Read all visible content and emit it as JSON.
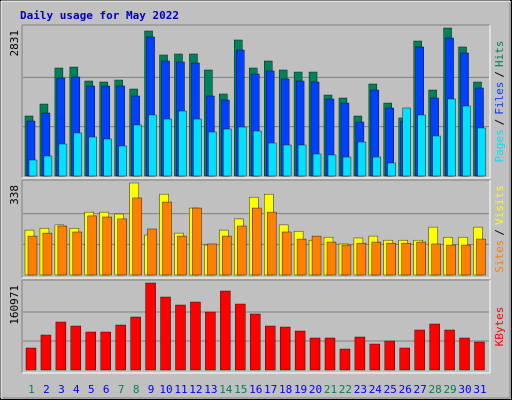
{
  "title": "Daily usage for May 2022",
  "label_separator": "/",
  "days": [
    1,
    2,
    3,
    4,
    5,
    6,
    7,
    8,
    9,
    10,
    11,
    12,
    13,
    14,
    15,
    16,
    17,
    18,
    19,
    20,
    21,
    22,
    23,
    24,
    25,
    26,
    27,
    28,
    29,
    30,
    31
  ],
  "weekend_days": [
    1,
    7,
    8,
    14,
    15,
    21,
    22,
    28,
    29
  ],
  "weekday_color": "#0000ff",
  "weekend_color": "#00805c",
  "chart_data": [
    {
      "type": "bar",
      "ylim": [
        0,
        2831
      ],
      "yticks": [
        2831
      ],
      "series": [
        {
          "name": "Hits",
          "color": "#00805c",
          "values": [
            1148,
            1377,
            2066,
            2085,
            1817,
            1798,
            1836,
            1664,
            2774,
            2315,
            2334,
            2334,
            2028,
            1569,
            2602,
            2066,
            2200,
            2028,
            1989,
            1989,
            1549,
            1492,
            1148,
            1760,
            1396,
            1110,
            2582,
            1645,
            2831,
            2468,
            1798
          ]
        },
        {
          "name": "Files",
          "color": "#0040ff",
          "values": [
            1052,
            1205,
            1875,
            1894,
            1722,
            1722,
            1722,
            1530,
            2659,
            2200,
            2181,
            2162,
            1530,
            1454,
            2410,
            1951,
            2009,
            1856,
            1817,
            1798,
            1473,
            1396,
            1033,
            1645,
            1301,
            1052,
            2468,
            1492,
            2640,
            2353,
            1683
          ]
        },
        {
          "name": "Pages",
          "color": "#00e0ff",
          "values": [
            306,
            383,
            612,
            823,
            746,
            708,
            574,
            976,
            1167,
            1090,
            1243,
            1090,
            842,
            899,
            937,
            861,
            631,
            593,
            593,
            421,
            402,
            363,
            650,
            363,
            249,
            1301,
            1167,
            765,
            1473,
            1339,
            918
          ]
        }
      ]
    },
    {
      "type": "bar",
      "ylim": [
        0,
        338
      ],
      "yticks": [
        338
      ],
      "series": [
        {
          "name": "Visits",
          "color": "#ffff00",
          "values": [
            165,
            172,
            184,
            172,
            231,
            231,
            224,
            338,
            147,
            297,
            154,
            246,
            110,
            165,
            206,
            286,
            297,
            184,
            161,
            128,
            139,
            114,
            136,
            143,
            128,
            128,
            128,
            176,
            139,
            139,
            176
          ]
        },
        {
          "name": "Sites",
          "color": "#ff8000",
          "values": [
            143,
            154,
            180,
            158,
            217,
            213,
            206,
            283,
            169,
            268,
            143,
            246,
            114,
            143,
            180,
            246,
            231,
            158,
            132,
            143,
            121,
            110,
            117,
            121,
            117,
            117,
            121,
            114,
            110,
            110,
            132
          ]
        }
      ]
    },
    {
      "type": "bar",
      "ylim": [
        0,
        160971
      ],
      "yticks": [
        160971
      ],
      "series": [
        {
          "name": "KBytes",
          "color": "#ff0000",
          "values": [
            40700,
            64750,
            88800,
            81400,
            70300,
            70300,
            83250,
            98050,
            160971,
            135050,
            120250,
            125800,
            107300,
            146150,
            122100,
            103600,
            81400,
            79550,
            72150,
            59200,
            59200,
            38850,
            61050,
            48100,
            53650,
            40700,
            74000,
            85100,
            74000,
            59200,
            51800
          ]
        }
      ]
    }
  ]
}
